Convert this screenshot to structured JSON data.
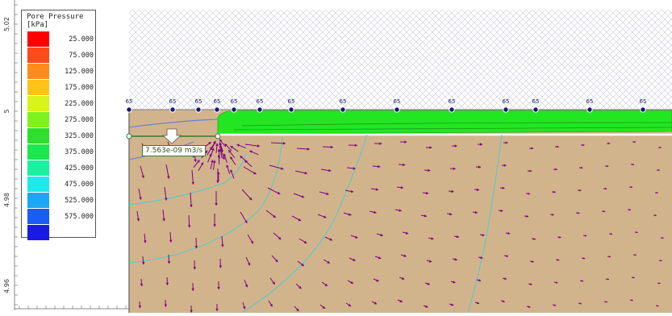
{
  "legend": {
    "title_line1": "Pore Pressure",
    "title_line2": "[kPa]",
    "entries": [
      {
        "value": "25.000",
        "color": "#ff0000"
      },
      {
        "value": "75.000",
        "color": "#ff4a1a"
      },
      {
        "value": "125.000",
        "color": "#ff8c1a"
      },
      {
        "value": "175.000",
        "color": "#ffc21a"
      },
      {
        "value": "225.000",
        "color": "#d7f31a"
      },
      {
        "value": "275.000",
        "color": "#7ef21a"
      },
      {
        "value": "325.000",
        "color": "#2ee02e"
      },
      {
        "value": "375.000",
        "color": "#1ae84c"
      },
      {
        "value": "425.000",
        "color": "#1af0a0"
      },
      {
        "value": "475.000",
        "color": "#1aeaea"
      },
      {
        "value": "525.000",
        "color": "#1aa8f5"
      },
      {
        "value": "575.000",
        "color": "#1a5cf5"
      },
      {
        "value": "",
        "color": "#1a1ae6"
      }
    ]
  },
  "y_axis": {
    "ticks": [
      "5.02",
      "5",
      "4.98",
      "4.96"
    ]
  },
  "boundary_head_label": "65",
  "flux_label": "7.563e-09 m3/s",
  "colors": {
    "soil": "#d2b48c",
    "seepage": "#22e622",
    "contour": "#5bc8c8",
    "contour_blue": "#5b7fd0",
    "vector": "#800080"
  }
}
